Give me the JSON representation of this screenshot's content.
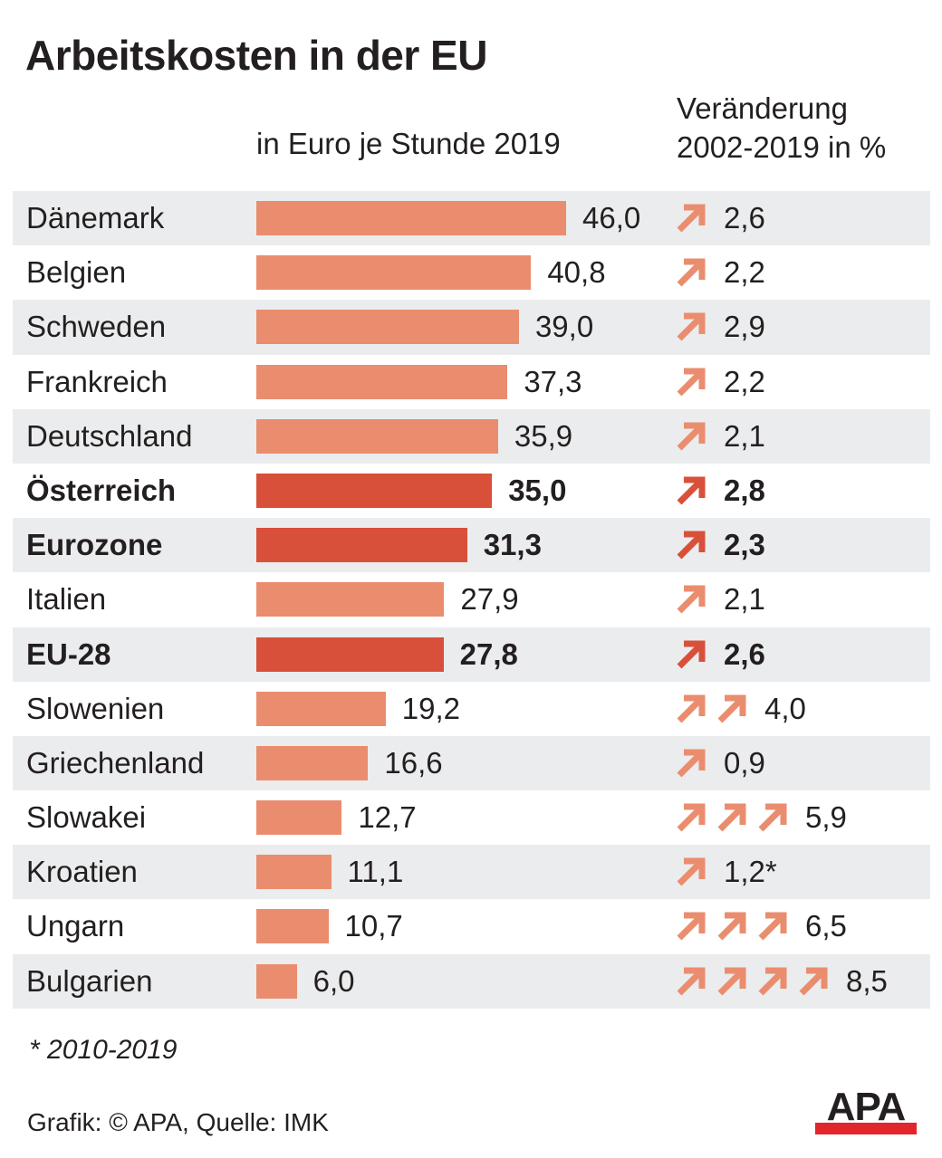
{
  "title": "Arbeitskosten in der EU",
  "subtitle_left": "in Euro je Stunde 2019",
  "subtitle_right_line1": "Veränderung",
  "subtitle_right_line2": "2002-2019 in %",
  "footnote": "* 2010-2019",
  "credit": "Grafik: © APA, Quelle: IMK",
  "logo_text": "APA",
  "colors": {
    "bar_light": "#ea8d6e",
    "bar_highlight": "#d9503a",
    "row_shade": "#ebeced",
    "logo_red": "#e3252e",
    "text": "#231f20"
  },
  "icon": "up-right-arrow-icon",
  "chart_data": {
    "type": "bar",
    "orientation": "horizontal",
    "categories": [
      "Dänemark",
      "Belgien",
      "Schweden",
      "Frankreich",
      "Deutschland",
      "Österreich",
      "Eurozone",
      "Italien",
      "EU-28",
      "Slowenien",
      "Griechenland",
      "Slowakei",
      "Kroatien",
      "Ungarn",
      "Bulgarien"
    ],
    "series": [
      {
        "values": [
          46.0,
          40.8,
          39.0,
          37.3,
          35.9,
          35.0,
          31.3,
          27.9,
          27.8,
          19.2,
          16.6,
          12.7,
          11.1,
          10.7,
          6.0
        ],
        "labels": [
          "46,0",
          "40,8",
          "39,0",
          "37,3",
          "35,9",
          "35,0",
          "31,3",
          "27,9",
          "27,8",
          "19,2",
          "16,6",
          "12,7",
          "11,1",
          "10,7",
          "6,0"
        ]
      },
      {
        "values": [
          2.6,
          2.2,
          2.9,
          2.2,
          2.1,
          2.8,
          2.3,
          2.1,
          2.6,
          4.0,
          0.9,
          5.9,
          1.2,
          6.5,
          8.5
        ],
        "labels": [
          "2,6",
          "2,2",
          "2,9",
          "2,2",
          "2,1",
          "2,8",
          "2,3",
          "2,1",
          "2,6",
          "4,0",
          "0,9",
          "5,9",
          "1,2*",
          "6,5",
          "8,5"
        ]
      }
    ],
    "arrow_counts": [
      1,
      1,
      1,
      1,
      1,
      1,
      1,
      1,
      1,
      2,
      1,
      3,
      1,
      3,
      4
    ],
    "highlighted": [
      "Österreich",
      "Eurozone",
      "EU-28"
    ],
    "xlim": [
      0,
      46.0
    ],
    "grid": false,
    "legend": "none"
  }
}
